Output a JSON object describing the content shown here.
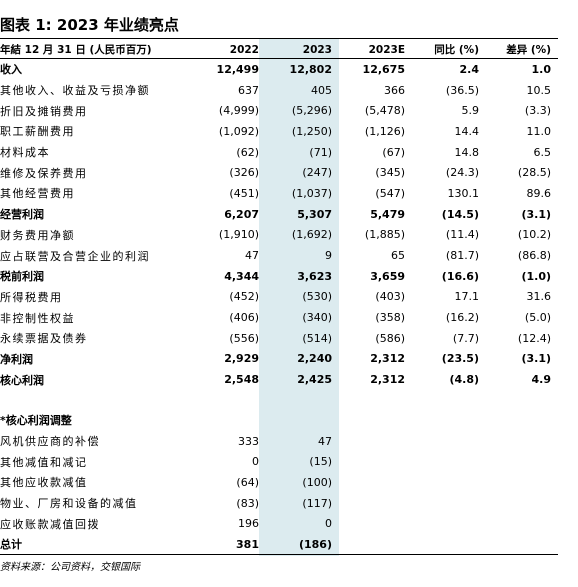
{
  "title": "图表 1: 2023 年业绩亮点",
  "header": {
    "label": "年結 12 月 31 日 (人民币百万)",
    "cols": [
      "2022",
      "2023",
      "2023E",
      "同比 (%)",
      "差异 (%)"
    ]
  },
  "rows": [
    {
      "label": "收入",
      "v": [
        "12,499",
        "12,802",
        "12,675",
        "2.4",
        "1.0"
      ],
      "bold": true
    },
    {
      "label": "其他收入、收益及亏损净额",
      "v": [
        "637",
        "405",
        "366",
        "(36.5)",
        "10.5"
      ]
    },
    {
      "label": "折旧及摊销费用",
      "v": [
        "(4,999)",
        "(5,296)",
        "(5,478)",
        "5.9",
        "(3.3)"
      ]
    },
    {
      "label": "职工薪酬费用",
      "v": [
        "(1,092)",
        "(1,250)",
        "(1,126)",
        "14.4",
        "11.0"
      ]
    },
    {
      "label": "材料成本",
      "v": [
        "(62)",
        "(71)",
        "(67)",
        "14.8",
        "6.5"
      ]
    },
    {
      "label": "维修及保养费用",
      "v": [
        "(326)",
        "(247)",
        "(345)",
        "(24.3)",
        "(28.5)"
      ]
    },
    {
      "label": "其他经营费用",
      "v": [
        "(451)",
        "(1,037)",
        "(547)",
        "130.1",
        "89.6"
      ]
    },
    {
      "label": "经营利润",
      "v": [
        "6,207",
        "5,307",
        "5,479",
        "(14.5)",
        "(3.1)"
      ],
      "bold": true
    },
    {
      "label": "财务费用净额",
      "v": [
        "(1,910)",
        "(1,692)",
        "(1,885)",
        "(11.4)",
        "(10.2)"
      ]
    },
    {
      "label": "应占联营及合营企业的利润",
      "v": [
        "47",
        "9",
        "65",
        "(81.7)",
        "(86.8)"
      ]
    },
    {
      "label": "税前利润",
      "v": [
        "4,344",
        "3,623",
        "3,659",
        "(16.6)",
        "(1.0)"
      ],
      "bold": true
    },
    {
      "label": "所得税费用",
      "v": [
        "(452)",
        "(530)",
        "(403)",
        "17.1",
        "31.6"
      ]
    },
    {
      "label": "非控制性权益",
      "v": [
        "(406)",
        "(340)",
        "(358)",
        "(16.2)",
        "(5.0)"
      ]
    },
    {
      "label": "永续票据及债券",
      "v": [
        "(556)",
        "(514)",
        "(586)",
        "(7.7)",
        "(12.4)"
      ]
    },
    {
      "label": "净利润",
      "v": [
        "2,929",
        "2,240",
        "2,312",
        "(23.5)",
        "(3.1)"
      ],
      "bold": true
    },
    {
      "label": "核心利润",
      "v": [
        "2,548",
        "2,425",
        "2,312",
        "(4.8)",
        "4.9"
      ],
      "bold": true
    },
    {
      "label": "",
      "v": [
        "",
        "",
        "",
        "",
        ""
      ],
      "empty": true
    },
    {
      "label": "*核心利润调整",
      "v": [
        "",
        "",
        "",
        "",
        ""
      ],
      "bold": true
    },
    {
      "label": "风机供应商的补偿",
      "v": [
        "333",
        "47",
        "",
        "",
        ""
      ]
    },
    {
      "label": "其他减值和减记",
      "v": [
        "0",
        "(15)",
        "",
        "",
        ""
      ]
    },
    {
      "label": "其他应收款减值",
      "v": [
        "(64)",
        "(100)",
        "",
        "",
        ""
      ]
    },
    {
      "label": "物业、厂房和设备的减值",
      "v": [
        "(83)",
        "(117)",
        "",
        "",
        ""
      ]
    },
    {
      "label": "应收账款减值回拨",
      "v": [
        "196",
        "0",
        "",
        "",
        ""
      ]
    },
    {
      "label": "总计",
      "v": [
        "381",
        "(186)",
        "",
        "",
        ""
      ],
      "bold": true
    }
  ],
  "source": "资料来源：公司资料，交银国际"
}
